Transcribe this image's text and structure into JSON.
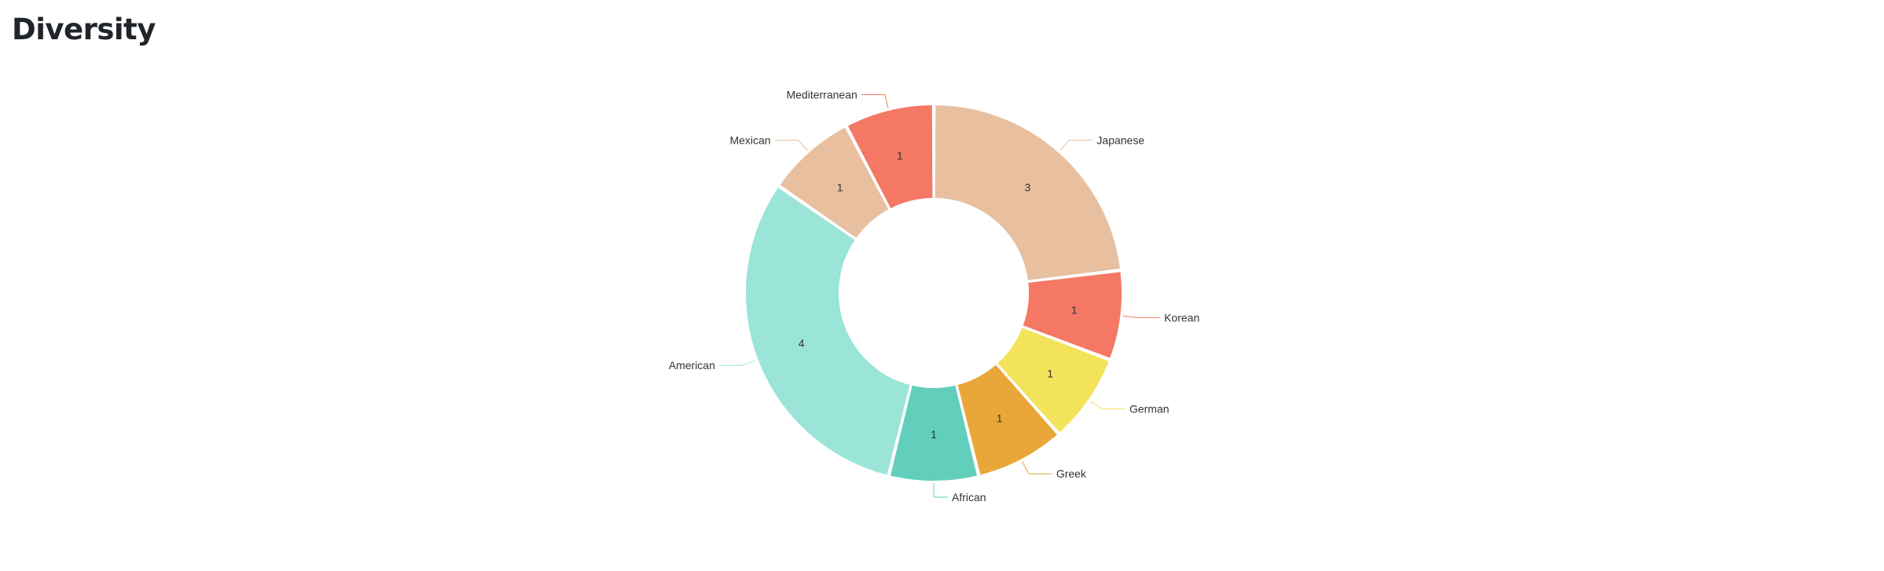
{
  "page": {
    "title": "Diversity"
  },
  "chart_data": {
    "type": "pie",
    "title": "",
    "categories": [
      "Japanese",
      "Korean",
      "German",
      "Greek",
      "African",
      "American",
      "Mexican",
      "Mediterranean"
    ],
    "values": [
      3,
      1,
      1,
      1,
      1,
      4,
      1,
      1
    ],
    "colors": [
      "#e8c0a0",
      "#f47864",
      "#f2e35b",
      "#e8a738",
      "#62cfbd",
      "#9ae4d8",
      "#e8c0a0",
      "#f47864"
    ],
    "donut": true,
    "legend": "none"
  }
}
